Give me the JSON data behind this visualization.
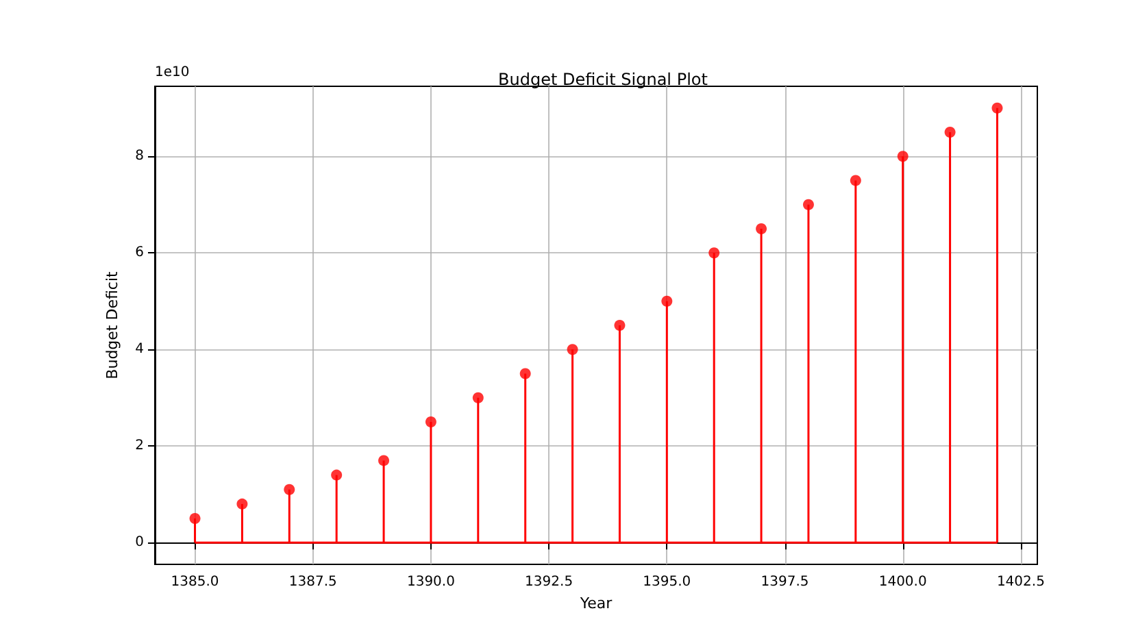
{
  "chart_data": {
    "type": "lollipop",
    "title": "Budget Deficit Signal Plot",
    "xlabel": "Year",
    "ylabel": "Budget Deficit",
    "annotations": [
      "1e10"
    ],
    "x": [
      1385,
      1386,
      1387,
      1388,
      1389,
      1390,
      1391,
      1392,
      1393,
      1394,
      1395,
      1396,
      1397,
      1398,
      1399,
      1400,
      1401,
      1402
    ],
    "series": [
      {
        "color": "#ff0000",
        "values": [
          0.5,
          0.8,
          1.1,
          1.4,
          1.7,
          2.5,
          3.0,
          3.5,
          4.0,
          4.5,
          5.0,
          6.0,
          6.5,
          7.0,
          7.5,
          8.0,
          8.5,
          9.0
        ]
      }
    ],
    "xlim": [
      1384.15,
      1402.85
    ],
    "xticks": [
      {
        "value": 1385,
        "label": "1385.0"
      },
      {
        "value": 1387.5,
        "label": "1387.5"
      },
      {
        "value": 1390,
        "label": "1390.0"
      },
      {
        "value": 1392.5,
        "label": "1392.5"
      },
      {
        "value": 1395,
        "label": "1395.0"
      },
      {
        "value": 1397.5,
        "label": "1397.5"
      },
      {
        "value": 1400,
        "label": "1400.0"
      },
      {
        "value": 1402.5,
        "label": "1402.5"
      }
    ],
    "ylim": [
      -0.45,
      9.45
    ],
    "yticks": [
      0,
      2,
      4,
      6,
      8
    ],
    "grid": true,
    "marker": "circle"
  }
}
